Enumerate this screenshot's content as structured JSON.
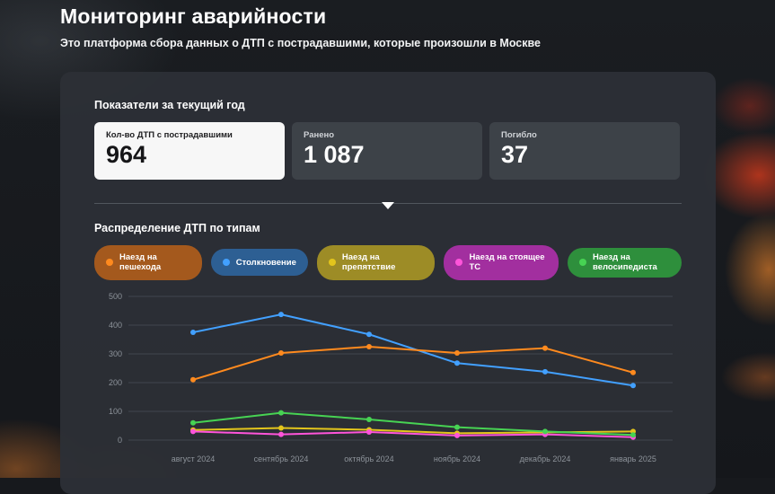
{
  "page": {
    "title": "Мониторинг аварийности",
    "subtitle": "Это платформа сбора данных о ДТП с пострадавшими, которые произошли в Москве"
  },
  "stats": {
    "heading": "Показатели за текущий год",
    "cards": [
      {
        "label": "Кол-во ДТП с пострадавшими",
        "value": "964"
      },
      {
        "label": "Ранено",
        "value": "1 087"
      },
      {
        "label": "Погибло",
        "value": "37"
      }
    ]
  },
  "distribution": {
    "heading": "Распределение ДТП по типам",
    "legend": [
      {
        "label": "Наезд на пешехода",
        "dot": "#ff8a1e",
        "bg": "#a4591d"
      },
      {
        "label": "Столкновение",
        "dot": "#42a0ff",
        "bg": "#2d5f93"
      },
      {
        "label": "Наезд на препятствие",
        "dot": "#e3c51c",
        "bg": "#9d8c26"
      },
      {
        "label": "Наезд на стоящее ТС",
        "dot": "#ff54da",
        "bg": "#a22f9f"
      },
      {
        "label": "Наезд на велосипедиста",
        "dot": "#47d353",
        "bg": "#2e8f3c"
      }
    ]
  },
  "chart_data": {
    "type": "line",
    "title": "Распределение ДТП по типам",
    "categories": [
      "август 2024",
      "сентябрь 2024",
      "октябрь 2024",
      "ноябрь 2024",
      "декабрь 2024",
      "январь 2025"
    ],
    "series": [
      {
        "name": "Столкновение",
        "color": "#42a0ff",
        "values": [
          375,
          437,
          368,
          268,
          238,
          190
        ]
      },
      {
        "name": "Наезд на препятствие",
        "color": "#e3c51c",
        "values": [
          35,
          42,
          36,
          24,
          27,
          30
        ]
      },
      {
        "name": "Наезд на стоящее ТС",
        "color": "#ff54da",
        "values": [
          30,
          20,
          28,
          16,
          20,
          10
        ]
      },
      {
        "name": "Наезд на велосипедиста",
        "color": "#47d353",
        "values": [
          60,
          95,
          72,
          45,
          30,
          18
        ]
      },
      {
        "name": "Наезд на пешехода",
        "color": "#ff8a1e",
        "values": [
          210,
          303,
          325,
          303,
          320,
          235
        ]
      }
    ],
    "xlabel": "",
    "ylabel": "",
    "ylim": [
      0,
      500
    ],
    "yticks": [
      0,
      100,
      200,
      300,
      400,
      500
    ],
    "grid": true,
    "legend_position": "top"
  }
}
